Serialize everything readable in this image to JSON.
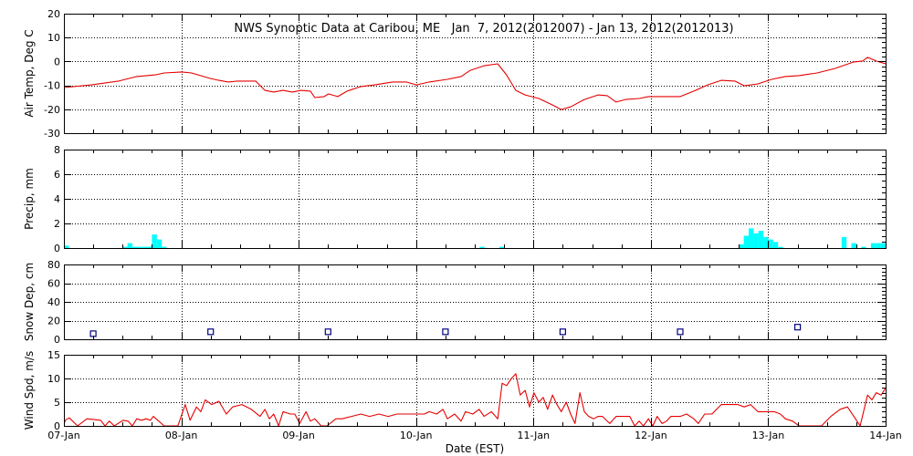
{
  "chart_data": [
    {
      "type": "line",
      "title": "NWS Synoptic Data at Caribou, ME   Jan  7, 2012(2012007) - Jan 13, 2012(2012013)",
      "ylabel": "Air Temp, Deg C",
      "xlim": [
        0,
        168
      ],
      "ylim": [
        -30,
        20
      ],
      "yticks": [
        20,
        10,
        0,
        -10,
        -20,
        -30
      ],
      "grid": true,
      "series": [
        {
          "color": "#e60000",
          "points": [
            [
              0,
              -10.9
            ],
            [
              5.6,
              -9.8
            ],
            [
              11.2,
              -8.2
            ],
            [
              14.9,
              -6.3
            ],
            [
              18.7,
              -5.6
            ],
            [
              20.5,
              -4.8
            ],
            [
              24.1,
              -4.4
            ],
            [
              26.1,
              -4.8
            ],
            [
              29.9,
              -7.1
            ],
            [
              31.7,
              -7.9
            ],
            [
              33.6,
              -8.6
            ],
            [
              35.5,
              -8.2
            ],
            [
              39.2,
              -8.2
            ],
            [
              41.1,
              -12.1
            ],
            [
              42.9,
              -12.8
            ],
            [
              44.8,
              -12.1
            ],
            [
              46.7,
              -12.8
            ],
            [
              48.5,
              -12.1
            ],
            [
              50.4,
              -12.4
            ],
            [
              51.3,
              -15.1
            ],
            [
              53.2,
              -14.7
            ],
            [
              54.1,
              -13.6
            ],
            [
              56.0,
              -14.7
            ],
            [
              57.9,
              -12.4
            ],
            [
              60.7,
              -10.5
            ],
            [
              63.5,
              -9.8
            ],
            [
              67.2,
              -8.6
            ],
            [
              70.0,
              -8.6
            ],
            [
              72.1,
              -9.8
            ],
            [
              74.7,
              -8.6
            ],
            [
              78.4,
              -7.5
            ],
            [
              81.2,
              -6.3
            ],
            [
              83.1,
              -3.7
            ],
            [
              85.9,
              -1.8
            ],
            [
              88.7,
              -1.0
            ],
            [
              90.5,
              -5.6
            ],
            [
              92.4,
              -12.1
            ],
            [
              94.3,
              -14.0
            ],
            [
              97.1,
              -15.5
            ],
            [
              99.9,
              -18.2
            ],
            [
              101.7,
              -20.1
            ],
            [
              103.6,
              -19.0
            ],
            [
              106.4,
              -15.9
            ],
            [
              109.2,
              -14.0
            ],
            [
              111.1,
              -14.3
            ],
            [
              112.9,
              -17.0
            ],
            [
              114.8,
              -15.9
            ],
            [
              117.6,
              -15.5
            ],
            [
              119.5,
              -14.7
            ],
            [
              122.3,
              -14.7
            ],
            [
              126.0,
              -14.7
            ],
            [
              128.8,
              -12.4
            ],
            [
              131.6,
              -9.8
            ],
            [
              134.4,
              -7.9
            ],
            [
              137.2,
              -8.2
            ],
            [
              139.1,
              -10.2
            ],
            [
              141.9,
              -9.4
            ],
            [
              144.7,
              -7.5
            ],
            [
              147.5,
              -6.3
            ],
            [
              150.3,
              -5.9
            ],
            [
              154.0,
              -4.8
            ],
            [
              157.7,
              -2.9
            ],
            [
              161.5,
              -0.2
            ],
            [
              163.3,
              0.2
            ],
            [
              164.3,
              1.7
            ],
            [
              166.1,
              0.2
            ],
            [
              168.0,
              -1.0
            ]
          ]
        }
      ]
    },
    {
      "type": "bar",
      "ylabel": "Precip, mm",
      "xlim": [
        0,
        168
      ],
      "ylim": [
        0,
        8
      ],
      "yticks": [
        8,
        6,
        4,
        2,
        0
      ],
      "grid": true,
      "series": [
        {
          "color": "#00ffff",
          "points": [
            [
              0,
              0.2
            ],
            [
              12,
              0.1
            ],
            [
              13,
              0.4
            ],
            [
              14,
              0.1
            ],
            [
              15,
              0.1
            ],
            [
              16,
              0.1
            ],
            [
              17,
              0.1
            ],
            [
              18,
              1.1
            ],
            [
              19,
              0.7
            ],
            [
              20,
              0.1
            ],
            [
              85,
              0.1
            ],
            [
              89,
              0.1
            ],
            [
              138,
              0.3
            ],
            [
              139,
              1.0
            ],
            [
              140,
              1.6
            ],
            [
              141,
              1.2
            ],
            [
              142,
              1.4
            ],
            [
              143,
              0.9
            ],
            [
              144,
              0.7
            ],
            [
              145,
              0.5
            ],
            [
              146,
              0.1
            ],
            [
              159,
              0.9
            ],
            [
              161,
              0.4
            ],
            [
              163,
              0.1
            ],
            [
              165,
              0.4
            ],
            [
              166,
              0.4
            ],
            [
              167,
              0.4
            ]
          ]
        }
      ]
    },
    {
      "type": "scatter",
      "ylabel": "Snow Dep, cm",
      "xlim": [
        0,
        168
      ],
      "ylim": [
        0,
        80
      ],
      "yticks": [
        80,
        60,
        40,
        20,
        0
      ],
      "grid": true,
      "series": [
        {
          "color": "#000080",
          "points": [
            [
              6,
              6
            ],
            [
              30,
              8
            ],
            [
              54,
              8
            ],
            [
              78,
              8
            ],
            [
              102,
              8
            ],
            [
              126,
              8
            ],
            [
              150,
              13
            ]
          ]
        }
      ]
    },
    {
      "type": "line",
      "ylabel": "Wind Spd, m/s",
      "xlabel": "Date (EST)",
      "xticklabels": [
        "07-Jan",
        "08-Jan",
        "09-Jan",
        "10-Jan",
        "11-Jan",
        "12-Jan",
        "13-Jan",
        "14-Jan"
      ],
      "xlim": [
        0,
        168
      ],
      "ylim": [
        0,
        15
      ],
      "yticks": [
        15,
        10,
        5,
        0
      ],
      "grid": true,
      "series": [
        {
          "color": "#e60000",
          "points": [
            [
              0,
              0.4
            ],
            [
              0.4,
              1.3
            ],
            [
              1.1,
              1.7
            ],
            [
              2.8,
              0
            ],
            [
              4.7,
              1.5
            ],
            [
              7.5,
              1.2
            ],
            [
              8.4,
              0
            ],
            [
              9.3,
              1
            ],
            [
              10.3,
              0
            ],
            [
              12.1,
              1.2
            ],
            [
              13.1,
              1
            ],
            [
              14,
              0
            ],
            [
              14.9,
              1.5
            ],
            [
              15.9,
              1.2
            ],
            [
              16.8,
              1.5
            ],
            [
              17.7,
              1.2
            ],
            [
              18.3,
              2
            ],
            [
              20.5,
              0
            ],
            [
              23.3,
              0
            ],
            [
              24.8,
              4.5
            ],
            [
              25.8,
              1.2
            ],
            [
              27.1,
              4
            ],
            [
              28,
              3
            ],
            [
              28.9,
              5.5
            ],
            [
              30.2,
              4.5
            ],
            [
              31.7,
              5.2
            ],
            [
              33.2,
              2.5
            ],
            [
              34.5,
              4
            ],
            [
              36.4,
              4.5
            ],
            [
              38.3,
              3.5
            ],
            [
              40.1,
              2
            ],
            [
              41.1,
              3.5
            ],
            [
              42,
              1.5
            ],
            [
              42.9,
              2.5
            ],
            [
              43.9,
              0
            ],
            [
              44.8,
              3
            ],
            [
              46.3,
              2.5
            ],
            [
              47.2,
              2.5
            ],
            [
              48.2,
              0.5
            ],
            [
              49.5,
              3
            ],
            [
              50.4,
              1
            ],
            [
              51.3,
              1.5
            ],
            [
              52.6,
              0
            ],
            [
              53.8,
              0
            ],
            [
              55.6,
              1.5
            ],
            [
              56.9,
              1.5
            ],
            [
              58.8,
              2
            ],
            [
              60.7,
              2.5
            ],
            [
              62.5,
              2
            ],
            [
              64.4,
              2.5
            ],
            [
              66.3,
              2
            ],
            [
              68.1,
              2.5
            ],
            [
              70,
              2.5
            ],
            [
              71.9,
              2.5
            ],
            [
              73.7,
              2.5
            ],
            [
              74.7,
              3
            ],
            [
              76.2,
              2.5
            ],
            [
              77.5,
              3.5
            ],
            [
              78.4,
              1.5
            ],
            [
              79.9,
              2.5
            ],
            [
              81.2,
              1
            ],
            [
              82.1,
              3
            ],
            [
              83.6,
              2.5
            ],
            [
              84.9,
              3.5
            ],
            [
              85.9,
              2
            ],
            [
              87.4,
              3
            ],
            [
              88.7,
              1.5
            ],
            [
              89.6,
              9
            ],
            [
              90.5,
              8.5
            ],
            [
              91.5,
              10
            ],
            [
              92.4,
              11
            ],
            [
              93.3,
              6.5
            ],
            [
              94.3,
              7.5
            ],
            [
              95.2,
              4
            ],
            [
              96.1,
              7
            ],
            [
              97.1,
              5
            ],
            [
              98,
              6
            ],
            [
              98.9,
              3.5
            ],
            [
              99.9,
              6.5
            ],
            [
              100.8,
              4.5
            ],
            [
              101.7,
              3
            ],
            [
              102.7,
              5
            ],
            [
              103.6,
              2.5
            ],
            [
              104.5,
              0.5
            ],
            [
              105.5,
              7
            ],
            [
              106.4,
              3
            ],
            [
              107.3,
              2
            ],
            [
              108.3,
              1.5
            ],
            [
              109.2,
              2
            ],
            [
              110.1,
              2
            ],
            [
              111.6,
              0.5
            ],
            [
              112.9,
              2
            ],
            [
              114.8,
              2
            ],
            [
              115.7,
              2
            ],
            [
              116.7,
              0
            ],
            [
              117.6,
              1
            ],
            [
              118.5,
              0
            ],
            [
              119.5,
              1.5
            ],
            [
              120.4,
              0
            ],
            [
              121.3,
              2
            ],
            [
              122.3,
              0.5
            ],
            [
              123.2,
              1
            ],
            [
              124.1,
              2
            ],
            [
              126,
              2
            ],
            [
              127.3,
              2.5
            ],
            [
              128.8,
              1.5
            ],
            [
              129.7,
              0.5
            ],
            [
              131,
              2.5
            ],
            [
              132.5,
              2.5
            ],
            [
              134.4,
              4.5
            ],
            [
              136.3,
              4.5
            ],
            [
              137.8,
              4.5
            ],
            [
              139.1,
              4
            ],
            [
              140.4,
              4.5
            ],
            [
              141.9,
              3
            ],
            [
              143.7,
              3
            ],
            [
              145.2,
              3
            ],
            [
              146.5,
              2.5
            ],
            [
              147.5,
              1.5
            ],
            [
              149,
              1
            ],
            [
              150.3,
              0
            ],
            [
              152.1,
              0
            ],
            [
              154.9,
              0
            ],
            [
              156.8,
              2
            ],
            [
              158.7,
              3.5
            ],
            [
              160.2,
              4
            ],
            [
              161.5,
              2
            ],
            [
              162.8,
              0
            ],
            [
              164.3,
              6.5
            ],
            [
              165.2,
              5.5
            ],
            [
              166.1,
              7
            ],
            [
              167.1,
              6.5
            ],
            [
              168,
              8
            ]
          ]
        }
      ]
    }
  ]
}
